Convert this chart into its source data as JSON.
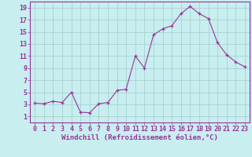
{
  "x": [
    0,
    1,
    2,
    3,
    4,
    5,
    6,
    7,
    8,
    9,
    10,
    11,
    12,
    13,
    14,
    15,
    16,
    17,
    18,
    19,
    20,
    21,
    22,
    23
  ],
  "y": [
    3.2,
    3.1,
    3.5,
    3.3,
    5.0,
    1.7,
    1.6,
    3.1,
    3.3,
    5.3,
    5.5,
    11.0,
    9.0,
    14.5,
    15.5,
    16.0,
    18.0,
    19.2,
    18.0,
    17.2,
    13.2,
    11.2,
    10.0,
    9.2
  ],
  "xlim": [
    -0.5,
    23.5
  ],
  "ylim": [
    0,
    20
  ],
  "yticks": [
    1,
    3,
    5,
    7,
    9,
    11,
    13,
    15,
    17,
    19
  ],
  "xticks": [
    0,
    1,
    2,
    3,
    4,
    5,
    6,
    7,
    8,
    9,
    10,
    11,
    12,
    13,
    14,
    15,
    16,
    17,
    18,
    19,
    20,
    21,
    22,
    23
  ],
  "xlabel": "Windchill (Refroidissement éolien,°C)",
  "line_color": "#993399",
  "marker_color": "#993399",
  "bg_color": "#c8eef0",
  "grid_color": "#a0cccc",
  "spine_color": "#993399",
  "tick_color": "#993399",
  "label_color": "#993399",
  "font_size_xlabel": 6.5,
  "font_size_ticks": 6.0
}
